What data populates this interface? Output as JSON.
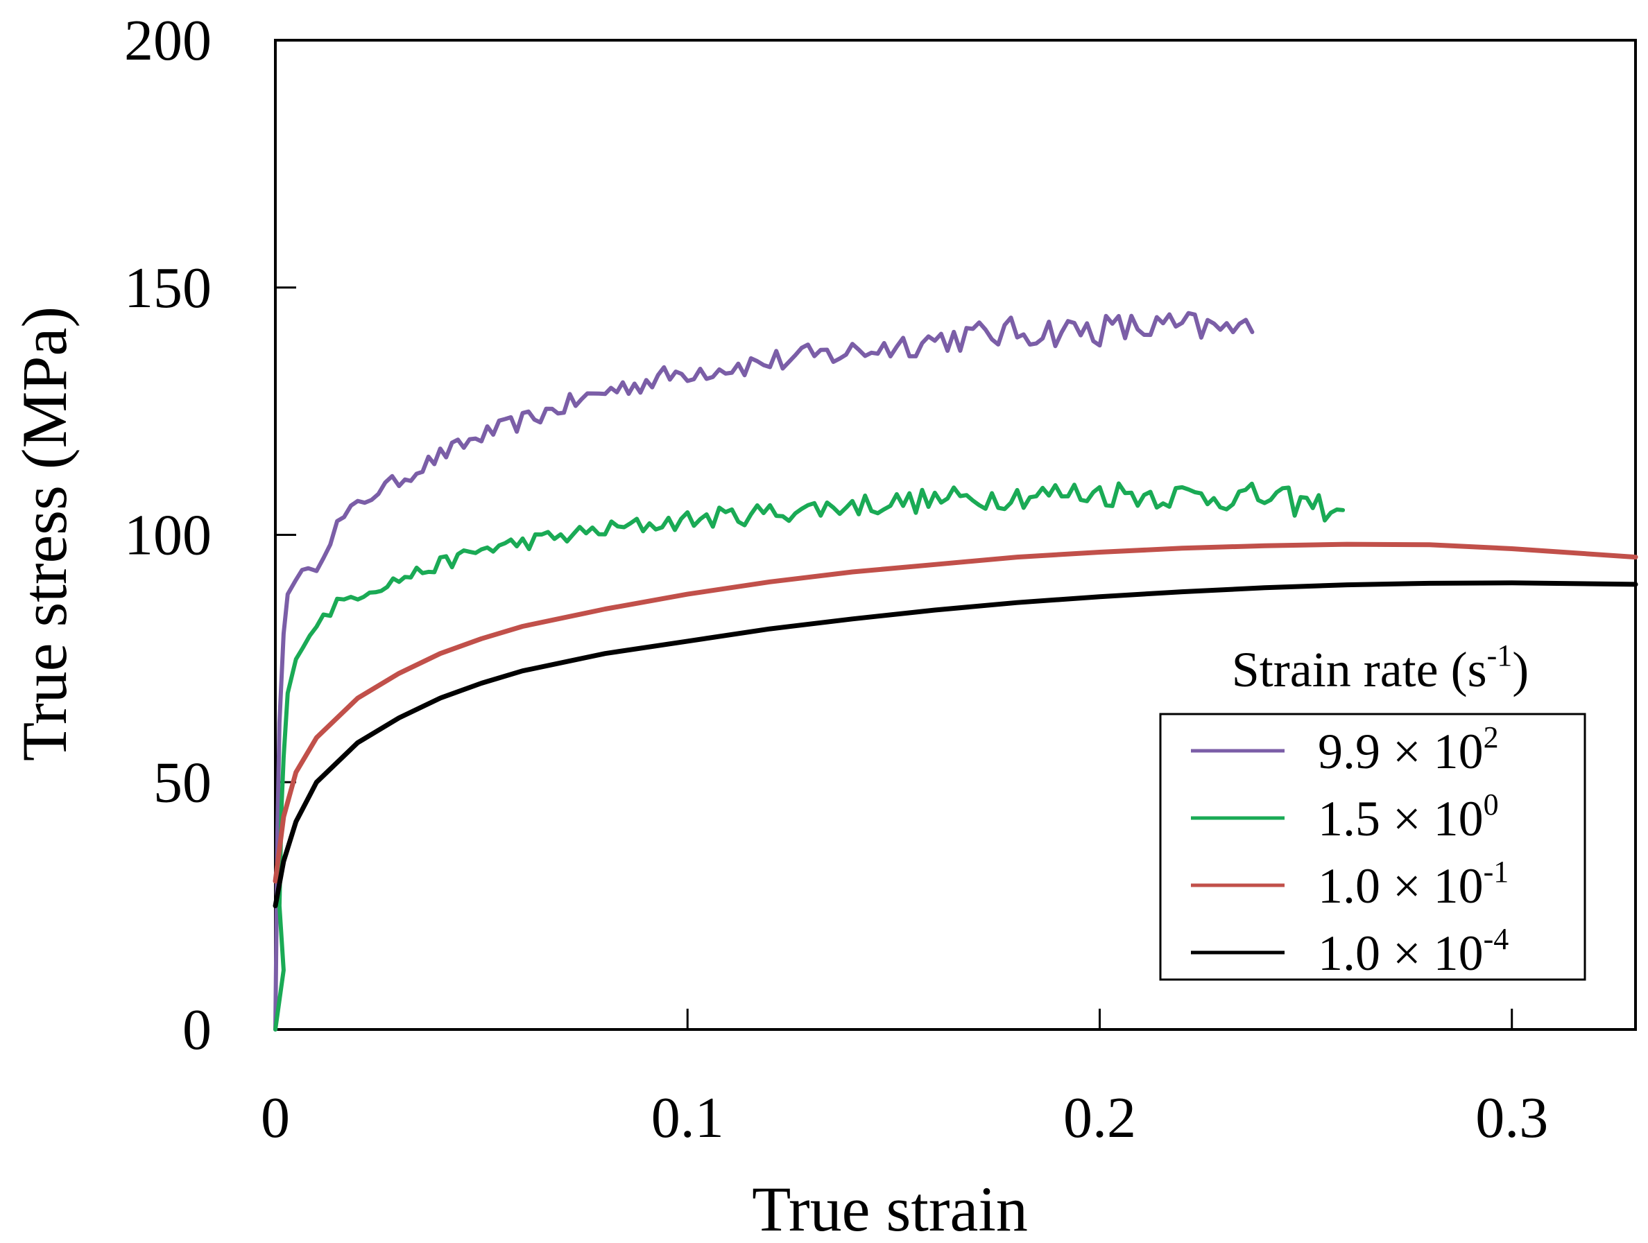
{
  "chart_data": {
    "type": "line",
    "title": "",
    "xlabel": "True strain",
    "ylabel": "True stress (MPa)",
    "xlim": [
      0,
      0.33
    ],
    "ylim": [
      0,
      200
    ],
    "xticks": [
      0,
      0.1,
      0.2,
      0.3
    ],
    "xtick_labels": [
      "0",
      "0.1",
      "0.2",
      "0.3"
    ],
    "yticks": [
      0,
      50,
      100,
      150,
      200
    ],
    "ytick_labels": [
      "0",
      "50",
      "100",
      "150",
      "200"
    ],
    "grid": false,
    "legend": {
      "title_main": "Strain rate (s",
      "title_sup": "-1",
      "title_end": ")",
      "placement": "bottom-right"
    },
    "series": [
      {
        "name": "9.9 × 10^2",
        "label_base": "9.9 × 10",
        "label_exp": "2",
        "color": "#7b5ea7",
        "noise": 1.3,
        "points": [
          [
            0,
            0
          ],
          [
            0.0005,
            40
          ],
          [
            0.001,
            62
          ],
          [
            0.002,
            80
          ],
          [
            0.003,
            88
          ],
          [
            0.005,
            92
          ],
          [
            0.008,
            92
          ],
          [
            0.01,
            94
          ],
          [
            0.015,
            102
          ],
          [
            0.02,
            106
          ],
          [
            0.025,
            109
          ],
          [
            0.03,
            111
          ],
          [
            0.04,
            116
          ],
          [
            0.05,
            120
          ],
          [
            0.06,
            123
          ],
          [
            0.07,
            126
          ],
          [
            0.08,
            129
          ],
          [
            0.09,
            131
          ],
          [
            0.1,
            133
          ],
          [
            0.12,
            135
          ],
          [
            0.14,
            137
          ],
          [
            0.16,
            139.5
          ],
          [
            0.18,
            141
          ],
          [
            0.2,
            141.5
          ],
          [
            0.22,
            142
          ],
          [
            0.237,
            141
          ]
        ]
      },
      {
        "name": "1.5 × 10^0",
        "label_base": "1.5 × 10",
        "label_exp": "0",
        "color": "#1aaa55",
        "noise": 1.1,
        "points": [
          [
            0,
            0
          ],
          [
            0.002,
            12
          ],
          [
            0.001,
            25
          ],
          [
            0.0015,
            45
          ],
          [
            0.002,
            55
          ],
          [
            0.003,
            68
          ],
          [
            0.005,
            76
          ],
          [
            0.01,
            82
          ],
          [
            0.015,
            86
          ],
          [
            0.02,
            88
          ],
          [
            0.03,
            91
          ],
          [
            0.04,
            94
          ],
          [
            0.05,
            97
          ],
          [
            0.06,
            98.5
          ],
          [
            0.08,
            101
          ],
          [
            0.1,
            103
          ],
          [
            0.12,
            104.5
          ],
          [
            0.14,
            106
          ],
          [
            0.16,
            107
          ],
          [
            0.18,
            108
          ],
          [
            0.2,
            108.5
          ],
          [
            0.22,
            108
          ],
          [
            0.24,
            107.5
          ],
          [
            0.259,
            105
          ]
        ]
      },
      {
        "name": "1.0 × 10^-1",
        "label_base": "1.0 × 10",
        "label_exp": "-1",
        "color": "#c1504a",
        "noise": 0,
        "points": [
          [
            0,
            30
          ],
          [
            0.002,
            43
          ],
          [
            0.005,
            52
          ],
          [
            0.01,
            59
          ],
          [
            0.02,
            67
          ],
          [
            0.03,
            72
          ],
          [
            0.04,
            76
          ],
          [
            0.05,
            79
          ],
          [
            0.06,
            81.5
          ],
          [
            0.08,
            85
          ],
          [
            0.1,
            88
          ],
          [
            0.12,
            90.5
          ],
          [
            0.14,
            92.5
          ],
          [
            0.16,
            94
          ],
          [
            0.18,
            95.5
          ],
          [
            0.2,
            96.5
          ],
          [
            0.22,
            97.3
          ],
          [
            0.24,
            97.8
          ],
          [
            0.26,
            98.1
          ],
          [
            0.28,
            98
          ],
          [
            0.3,
            97.2
          ],
          [
            0.33,
            95.5
          ]
        ]
      },
      {
        "name": "1.0 × 10^-4",
        "label_base": "1.0 × 10",
        "label_exp": "-4",
        "color": "#000000",
        "noise": 0,
        "points": [
          [
            0,
            25
          ],
          [
            0.002,
            34
          ],
          [
            0.005,
            42
          ],
          [
            0.01,
            50
          ],
          [
            0.02,
            58
          ],
          [
            0.03,
            63
          ],
          [
            0.04,
            67
          ],
          [
            0.05,
            70
          ],
          [
            0.06,
            72.5
          ],
          [
            0.08,
            76
          ],
          [
            0.1,
            78.5
          ],
          [
            0.12,
            81
          ],
          [
            0.14,
            83
          ],
          [
            0.16,
            84.8
          ],
          [
            0.18,
            86.3
          ],
          [
            0.2,
            87.5
          ],
          [
            0.22,
            88.5
          ],
          [
            0.24,
            89.3
          ],
          [
            0.26,
            89.9
          ],
          [
            0.28,
            90.2
          ],
          [
            0.3,
            90.3
          ],
          [
            0.33,
            90
          ]
        ]
      }
    ]
  }
}
